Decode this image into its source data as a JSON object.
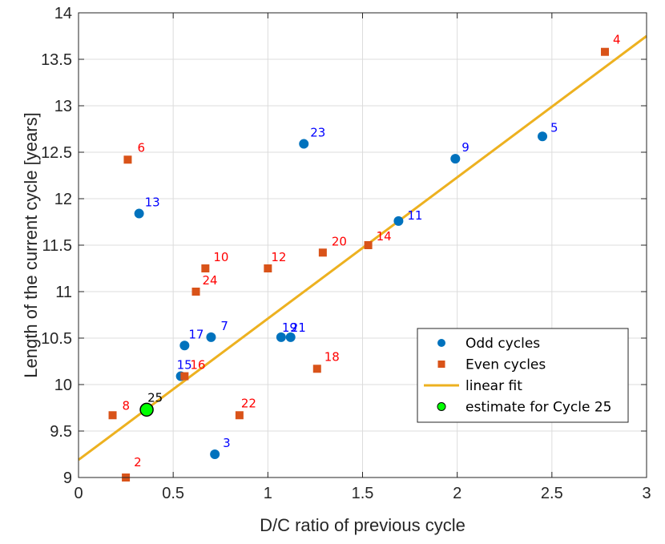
{
  "chart_data": {
    "type": "scatter",
    "title": "",
    "xlabel": "D/C ratio of previous cycle",
    "ylabel": "Length of the current cycle [years]",
    "xlim": [
      0,
      3
    ],
    "ylim": [
      9,
      14
    ],
    "xticks": [
      0,
      0.5,
      1,
      1.5,
      2,
      2.5,
      3
    ],
    "xtick_labels": [
      "0",
      "0.5",
      "1",
      "1.5",
      "2",
      "2.5",
      "3"
    ],
    "yticks": [
      9,
      9.5,
      10,
      10.5,
      11,
      11.5,
      12,
      12.5,
      13,
      13.5,
      14
    ],
    "ytick_labels": [
      "9",
      "9.5",
      "10",
      "10.5",
      "11",
      "11.5",
      "12",
      "12.5",
      "13",
      "13.5",
      "14"
    ],
    "grid": true,
    "legend_position": "bottom-right",
    "colors": {
      "odd": "#0072BD",
      "even": "#D95319",
      "fit": "#EDB120",
      "estimate": "#00FF00",
      "odd_label": "#0000FF",
      "even_label": "#FF0000",
      "estimate_label": "#000000"
    },
    "series": [
      {
        "name": "Odd cycles",
        "marker": "circle",
        "points": [
          {
            "label": "3",
            "x": 0.72,
            "y": 9.25
          },
          {
            "label": "5",
            "x": 2.45,
            "y": 12.67
          },
          {
            "label": "7",
            "x": 0.7,
            "y": 10.51
          },
          {
            "label": "9",
            "x": 1.99,
            "y": 12.43
          },
          {
            "label": "11",
            "x": 1.69,
            "y": 11.76
          },
          {
            "label": "13",
            "x": 0.32,
            "y": 11.84
          },
          {
            "label": "15",
            "x": 0.54,
            "y": 10.09
          },
          {
            "label": "17",
            "x": 0.56,
            "y": 10.42
          },
          {
            "label": "19",
            "x": 1.07,
            "y": 10.51
          },
          {
            "label": "21",
            "x": 1.12,
            "y": 10.51
          },
          {
            "label": "23",
            "x": 1.19,
            "y": 12.59
          }
        ]
      },
      {
        "name": "Even cycles",
        "marker": "square",
        "points": [
          {
            "label": "2",
            "x": 0.25,
            "y": 9.0
          },
          {
            "label": "4",
            "x": 2.78,
            "y": 13.58
          },
          {
            "label": "6",
            "x": 0.26,
            "y": 12.42
          },
          {
            "label": "8",
            "x": 0.18,
            "y": 9.67
          },
          {
            "label": "10",
            "x": 0.67,
            "y": 11.25
          },
          {
            "label": "12",
            "x": 1.0,
            "y": 11.25
          },
          {
            "label": "14",
            "x": 1.53,
            "y": 11.5
          },
          {
            "label": "16",
            "x": 0.56,
            "y": 10.09
          },
          {
            "label": "18",
            "x": 1.26,
            "y": 10.17
          },
          {
            "label": "20",
            "x": 1.29,
            "y": 11.42
          },
          {
            "label": "22",
            "x": 0.85,
            "y": 9.67
          },
          {
            "label": "24",
            "x": 0.62,
            "y": 11.0
          }
        ]
      },
      {
        "name": "linear fit",
        "marker": "line",
        "x": [
          0,
          3
        ],
        "y": [
          9.19,
          13.75
        ]
      },
      {
        "name": "estimate for Cycle 25",
        "marker": "circle",
        "points": [
          {
            "label": "25",
            "x": 0.36,
            "y": 9.73
          }
        ]
      }
    ]
  }
}
